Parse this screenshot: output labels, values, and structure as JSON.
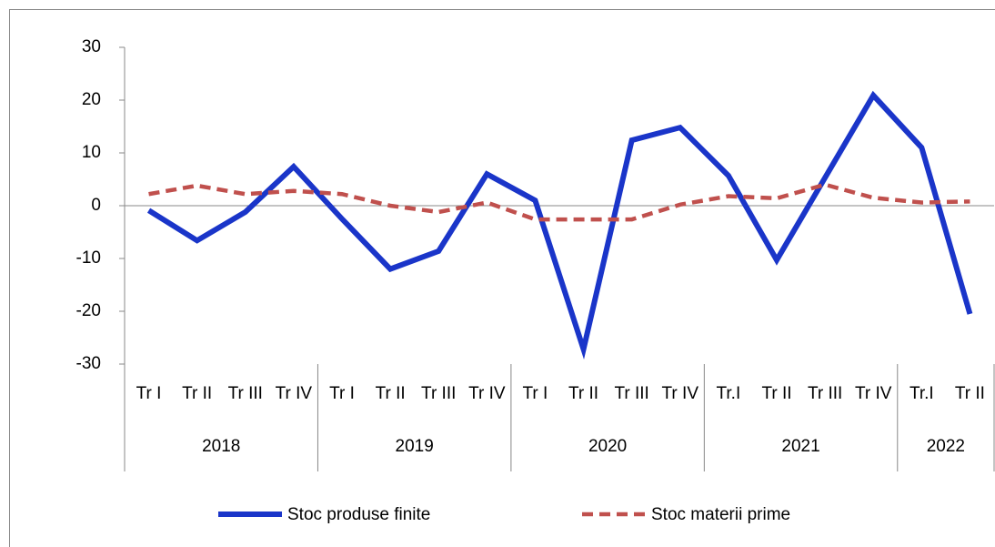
{
  "chart_data": {
    "type": "line",
    "groups": [
      {
        "label": "2018",
        "categories": [
          "Tr I",
          "Tr II",
          "Tr III",
          "Tr IV"
        ]
      },
      {
        "label": "2019",
        "categories": [
          "Tr I",
          "Tr II",
          "Tr III",
          "Tr IV"
        ]
      },
      {
        "label": "2020",
        "categories": [
          "Tr I",
          "Tr II",
          "Tr III",
          "Tr IV"
        ]
      },
      {
        "label": "2021",
        "categories": [
          "Tr.I",
          "Tr II",
          "Tr III",
          "Tr IV"
        ]
      },
      {
        "label": "2022",
        "categories": [
          "Tr.I",
          "Tr II"
        ]
      }
    ],
    "series": [
      {
        "name": "Stoc produse finite",
        "color": "#1a35c9",
        "dash": "solid",
        "values": [
          -0.9,
          -6.6,
          -1.2,
          7.4,
          -2.5,
          -12,
          -8.6,
          6,
          1,
          -27.2,
          12.4,
          14.8,
          5.7,
          -10.3,
          5.3,
          20.9,
          11,
          -20.5
        ]
      },
      {
        "name": "Stoc materii prime",
        "color": "#c0504d",
        "dash": "dashed",
        "values": [
          2.2,
          3.8,
          2.2,
          2.8,
          2.2,
          0,
          -1.2,
          0.6,
          -2.6,
          -2.6,
          -2.6,
          0.2,
          1.8,
          1.4,
          4,
          1.5,
          0.6,
          0.8
        ]
      }
    ],
    "ylim": [
      -30,
      30
    ],
    "yticks": [
      -30,
      -20,
      -10,
      0,
      10,
      20,
      30
    ],
    "legend": "bottom"
  }
}
